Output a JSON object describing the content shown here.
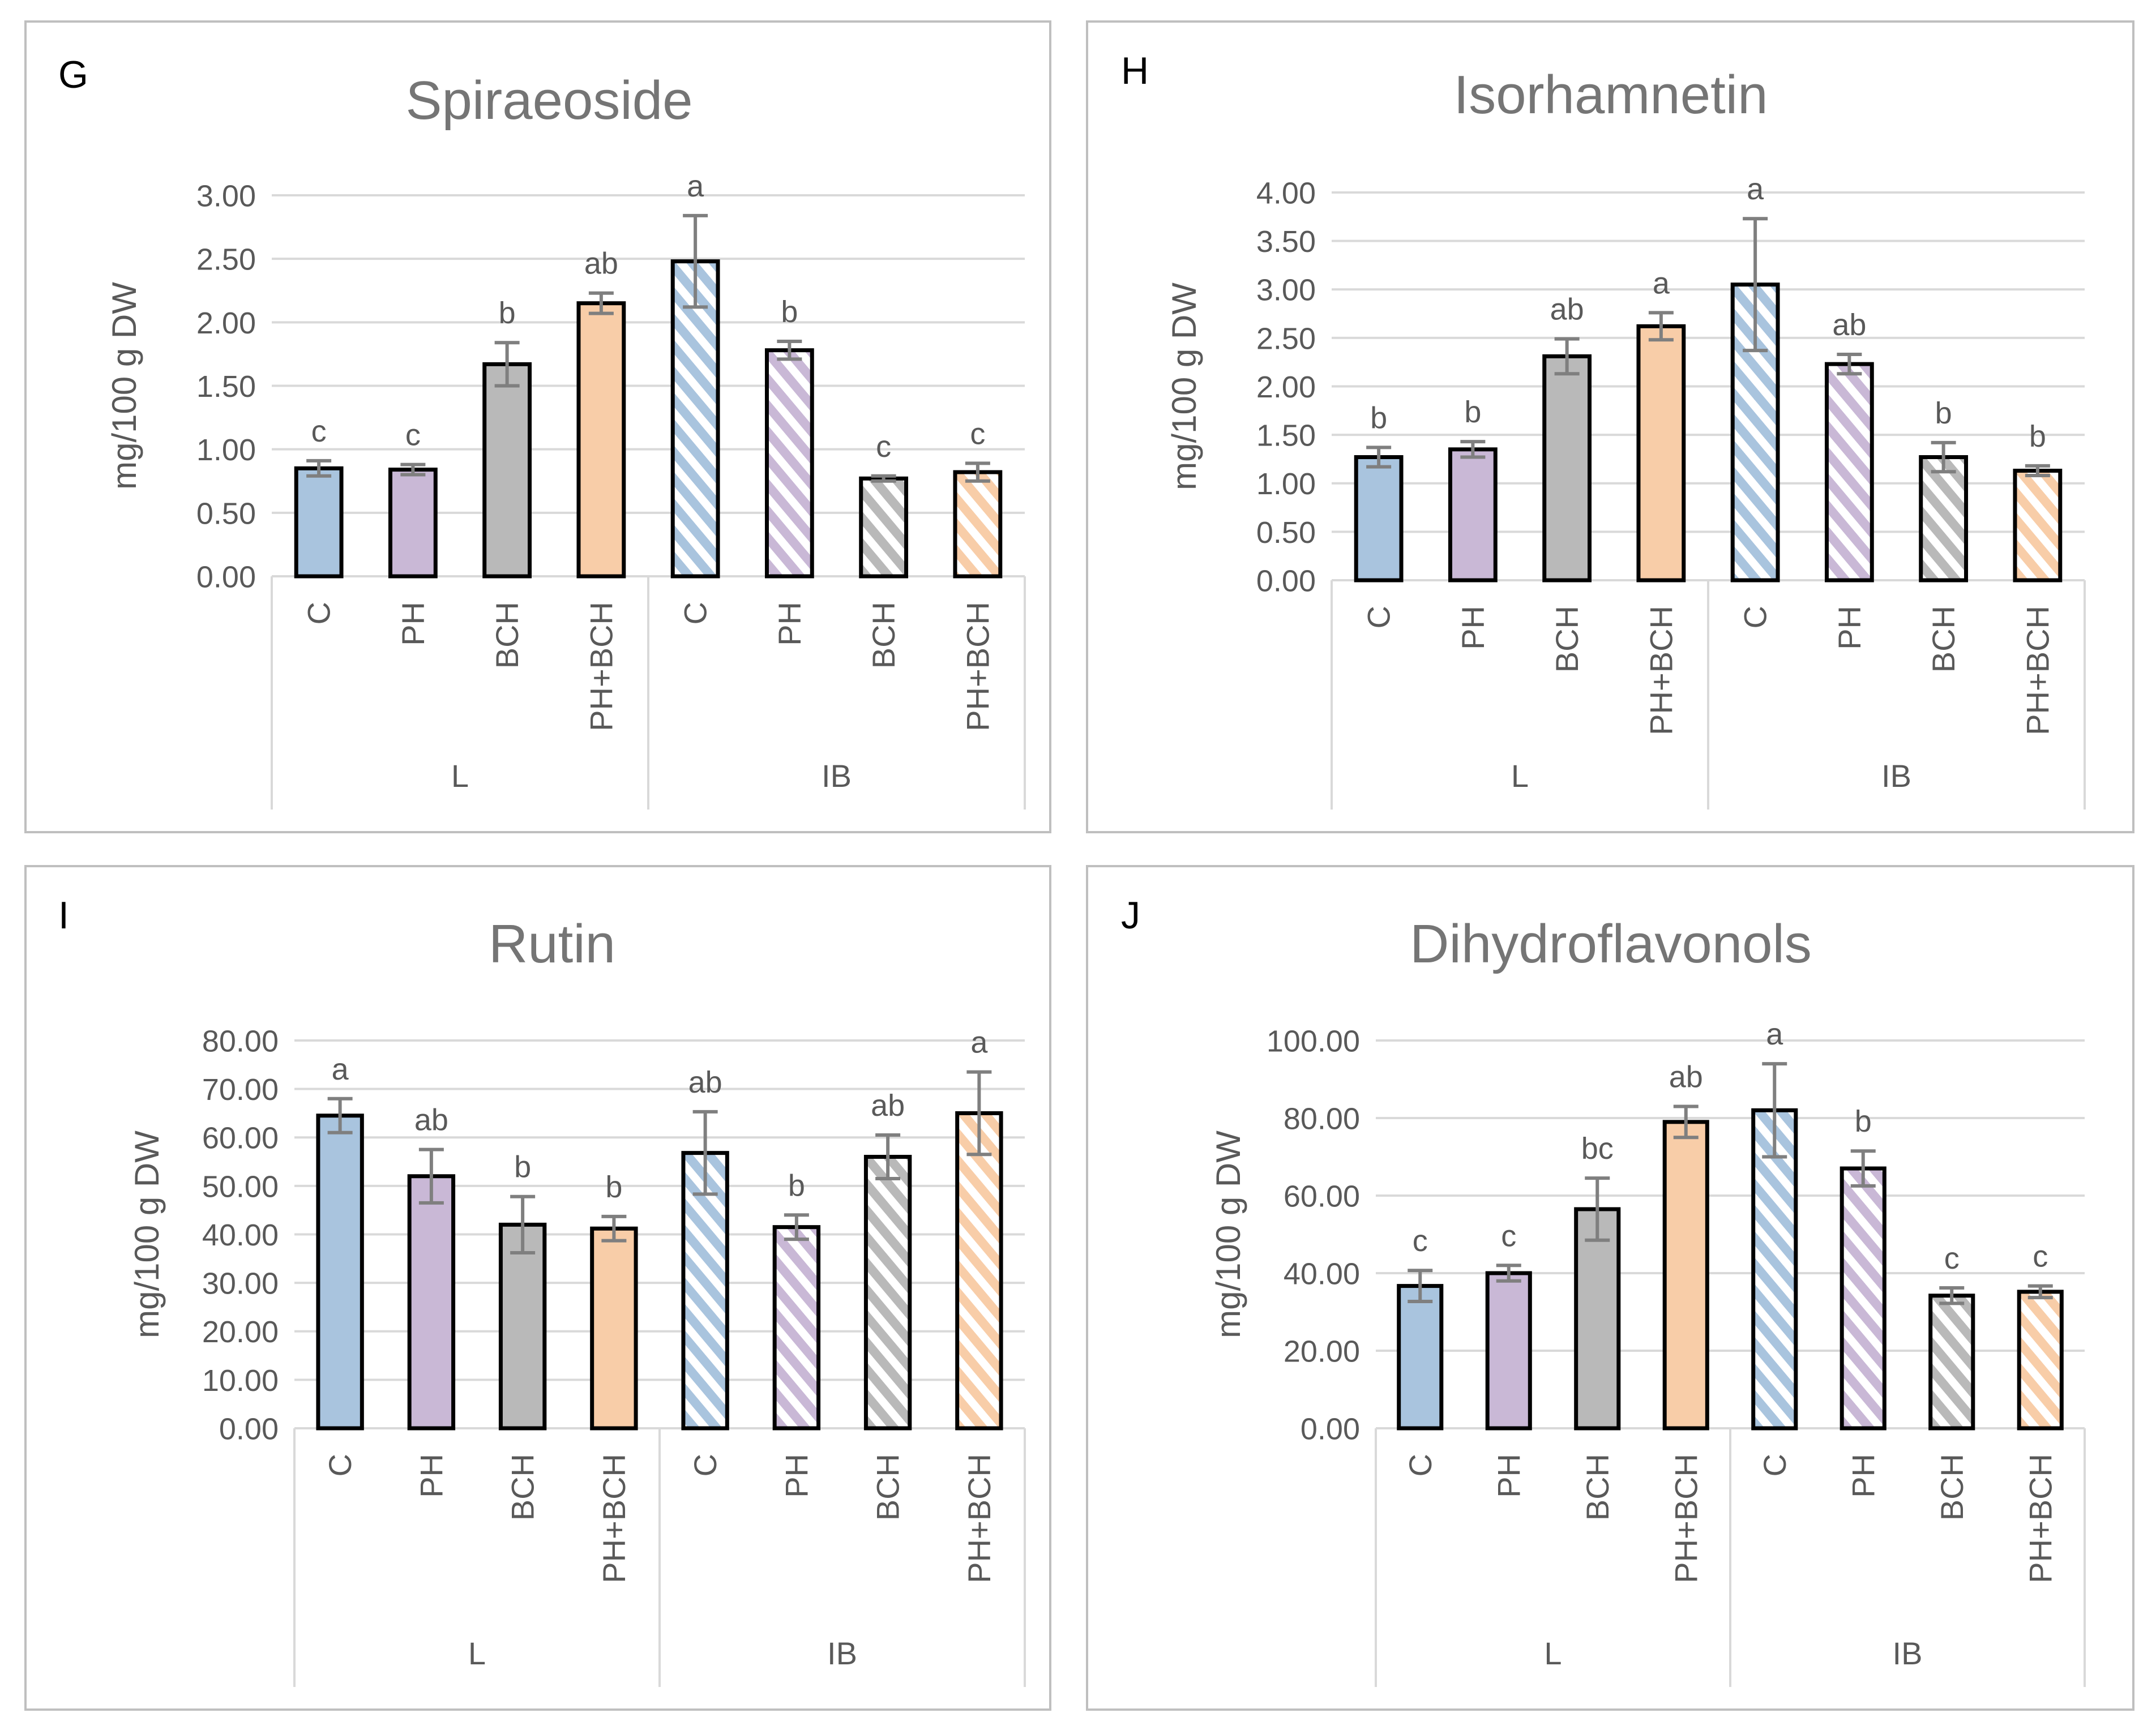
{
  "colors": {
    "C": "#A9C4DE",
    "PH": "#C9B8D6",
    "BCH": "#B9B9B9",
    "PH+BCH": "#F8CDA8",
    "grid": "#D9D9D9",
    "axis_text": "#595959",
    "title_text": "#757575",
    "bar_outline": "#000000",
    "error_bar": "#7F7F7F"
  },
  "chart_data": [
    {
      "panel_label": "G",
      "type": "bar",
      "title": "Spiraeoside",
      "ylabel": "mg/100 g DW",
      "xlabel": "",
      "ylim": [
        0,
        3
      ],
      "yticks": [
        "0.00",
        "0.50",
        "1.00",
        "1.50",
        "2.00",
        "2.50",
        "3.00"
      ],
      "categories": [
        "C",
        "PH",
        "BCH",
        "PH+BCH",
        "C",
        "PH",
        "BCH",
        "PH+BCH"
      ],
      "groups": [
        "L",
        "IB"
      ],
      "values": [
        0.85,
        0.84,
        1.67,
        2.15,
        2.48,
        1.78,
        0.77,
        0.82
      ],
      "errors": [
        0.06,
        0.04,
        0.17,
        0.08,
        0.36,
        0.07,
        0.02,
        0.07
      ],
      "letters": [
        "c",
        "c",
        "b",
        "ab",
        "a",
        "b",
        "c",
        "c"
      ],
      "grid": true
    },
    {
      "panel_label": "H",
      "type": "bar",
      "title": "Isorhamnetin",
      "ylabel": "mg/100 g DW",
      "xlabel": "",
      "ylim": [
        0,
        4
      ],
      "yticks": [
        "0.00",
        "0.50",
        "1.00",
        "1.50",
        "2.00",
        "2.50",
        "3.00",
        "3.50",
        "4.00"
      ],
      "categories": [
        "C",
        "PH",
        "BCH",
        "PH+BCH",
        "C",
        "PH",
        "BCH",
        "PH+BCH"
      ],
      "groups": [
        "L",
        "IB"
      ],
      "values": [
        1.27,
        1.35,
        2.31,
        2.62,
        3.05,
        2.23,
        1.27,
        1.13
      ],
      "errors": [
        0.1,
        0.08,
        0.18,
        0.14,
        0.68,
        0.1,
        0.15,
        0.05
      ],
      "letters": [
        "b",
        "b",
        "ab",
        "a",
        "a",
        "ab",
        "b",
        "b"
      ],
      "grid": true
    },
    {
      "panel_label": "I",
      "type": "bar",
      "title": "Rutin",
      "ylabel": "mg/100 g DW",
      "xlabel": "",
      "ylim": [
        0,
        80
      ],
      "yticks": [
        "0.00",
        "10.00",
        "20.00",
        "30.00",
        "40.00",
        "50.00",
        "60.00",
        "70.00",
        "80.00"
      ],
      "categories": [
        "C",
        "PH",
        "BCH",
        "PH+BCH",
        "C",
        "PH",
        "BCH",
        "PH+BCH"
      ],
      "groups": [
        "L",
        "IB"
      ],
      "values": [
        64.5,
        52.0,
        42.0,
        41.2,
        56.8,
        41.5,
        56.0,
        65.0
      ],
      "errors": [
        3.5,
        5.5,
        5.8,
        2.5,
        8.5,
        2.5,
        4.5,
        8.5
      ],
      "letters": [
        "a",
        "ab",
        "b",
        "b",
        "ab",
        "b",
        "ab",
        "a"
      ],
      "grid": true
    },
    {
      "panel_label": "J",
      "type": "bar",
      "title": "Dihydroflavonols",
      "ylabel": "mg/100 g DW",
      "xlabel": "",
      "ylim": [
        0,
        100
      ],
      "yticks": [
        "0.00",
        "20.00",
        "40.00",
        "60.00",
        "80.00",
        "100.00"
      ],
      "categories": [
        "C",
        "PH",
        "BCH",
        "PH+BCH",
        "C",
        "PH",
        "BCH",
        "PH+BCH"
      ],
      "groups": [
        "L",
        "IB"
      ],
      "values": [
        36.7,
        40.0,
        56.5,
        79.0,
        82.0,
        67.0,
        34.2,
        35.2
      ],
      "errors": [
        4.0,
        2.0,
        8.0,
        4.0,
        12.0,
        4.5,
        2.0,
        1.5
      ],
      "letters": [
        "c",
        "c",
        "bc",
        "ab",
        "a",
        "b",
        "c",
        "c"
      ],
      "grid": true
    }
  ]
}
